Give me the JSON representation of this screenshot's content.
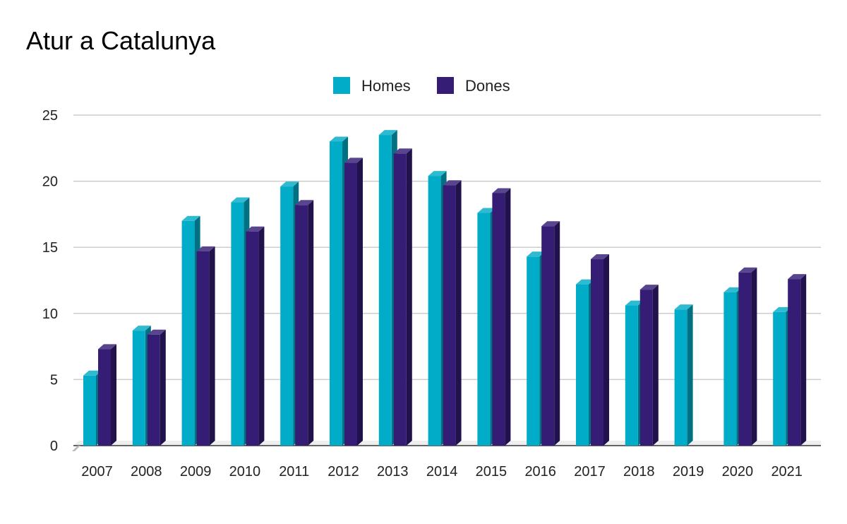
{
  "chart_data": {
    "type": "bar",
    "title": "Atur a Catalunya",
    "xlabel": "",
    "ylabel": "",
    "ylim": [
      0,
      25
    ],
    "yticks": [
      0,
      5,
      10,
      15,
      20,
      25
    ],
    "grid": true,
    "legend_position": "top-center",
    "style": "3d",
    "categories": [
      "2007",
      "2008",
      "2009",
      "2010",
      "2011",
      "2012",
      "2013",
      "2014",
      "2015",
      "2016",
      "2017",
      "2018",
      "2019",
      "2020",
      "2021"
    ],
    "series": [
      {
        "name": "Homes",
        "color": "#00acc8",
        "values": [
          5.3,
          8.7,
          17.0,
          18.4,
          19.6,
          23.0,
          23.5,
          20.4,
          17.6,
          14.3,
          12.2,
          10.6,
          10.3,
          11.6,
          10.1
        ]
      },
      {
        "name": "Dones",
        "color": "#351c75",
        "values": [
          7.3,
          8.4,
          14.7,
          16.2,
          18.2,
          21.4,
          22.1,
          19.7,
          19.1,
          16.6,
          14.1,
          11.8,
          null,
          13.1,
          12.6
        ]
      }
    ]
  }
}
